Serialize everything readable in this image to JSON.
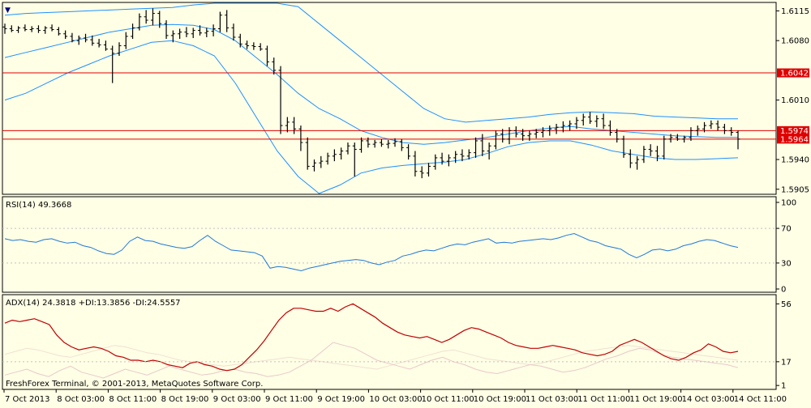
{
  "chart_data": [
    {
      "type": "candlestick-bars",
      "panel": "main",
      "y_axis_labels": [
        "1.6115",
        "1.6080",
        "1.6010",
        "1.5940",
        "1.5905"
      ],
      "ylim": [
        1.59,
        1.6124
      ],
      "horizontal_lines": [
        {
          "value": 1.6042,
          "label": "1.6042",
          "color": "#e00000"
        },
        {
          "value": 1.5974,
          "label": "1.5974",
          "color": "#e00000"
        },
        {
          "value": 1.5964,
          "label": "1.5964",
          "color": "#e00000"
        }
      ],
      "bars": [
        [
          1.6096,
          1.61,
          1.6088,
          1.6094
        ],
        [
          1.6094,
          1.6098,
          1.609,
          1.6092
        ],
        [
          1.6092,
          1.6097,
          1.6089,
          1.6095
        ],
        [
          1.6095,
          1.6099,
          1.6091,
          1.6093
        ],
        [
          1.6093,
          1.6097,
          1.609,
          1.6094
        ],
        [
          1.6094,
          1.6098,
          1.6089,
          1.6092
        ],
        [
          1.6092,
          1.6097,
          1.6088,
          1.6095
        ],
        [
          1.6095,
          1.6099,
          1.6091,
          1.6093
        ],
        [
          1.6093,
          1.6096,
          1.6086,
          1.6088
        ],
        [
          1.6088,
          1.6092,
          1.6082,
          1.6085
        ],
        [
          1.6085,
          1.6089,
          1.6078,
          1.608
        ],
        [
          1.608,
          1.6086,
          1.6075,
          1.6083
        ],
        [
          1.6083,
          1.6088,
          1.6078,
          1.6081
        ],
        [
          1.6081,
          1.6086,
          1.6074,
          1.6077
        ],
        [
          1.6077,
          1.6082,
          1.6072,
          1.6075
        ],
        [
          1.6075,
          1.608,
          1.6068,
          1.607
        ],
        [
          1.607,
          1.6074,
          1.603,
          1.6065
        ],
        [
          1.6065,
          1.6078,
          1.6062,
          1.6074
        ],
        [
          1.6074,
          1.609,
          1.607,
          1.6085
        ],
        [
          1.6085,
          1.61,
          1.6082,
          1.6095
        ],
        [
          1.6095,
          1.6112,
          1.6092,
          1.6108
        ],
        [
          1.6108,
          1.6116,
          1.61,
          1.6104
        ],
        [
          1.6104,
          1.6118,
          1.6098,
          1.6112
        ],
        [
          1.6112,
          1.6115,
          1.6095,
          1.61
        ],
        [
          1.61,
          1.6104,
          1.6082,
          1.6086
        ],
        [
          1.6086,
          1.6092,
          1.6078,
          1.6088
        ],
        [
          1.6088,
          1.6094,
          1.6082,
          1.609
        ],
        [
          1.609,
          1.6096,
          1.6084,
          1.6088
        ],
        [
          1.6088,
          1.6095,
          1.6083,
          1.6092
        ],
        [
          1.6092,
          1.6098,
          1.6086,
          1.6089
        ],
        [
          1.6089,
          1.6095,
          1.6084,
          1.6091
        ],
        [
          1.6091,
          1.6099,
          1.6085,
          1.6094
        ],
        [
          1.6094,
          1.6114,
          1.609,
          1.611
        ],
        [
          1.611,
          1.6116,
          1.609,
          1.6095
        ],
        [
          1.6095,
          1.61,
          1.608,
          1.6084
        ],
        [
          1.6084,
          1.6088,
          1.6072,
          1.6076
        ],
        [
          1.6076,
          1.608,
          1.607,
          1.6074
        ],
        [
          1.6074,
          1.6078,
          1.6069,
          1.6073
        ],
        [
          1.6073,
          1.6077,
          1.6068,
          1.607
        ],
        [
          1.607,
          1.6074,
          1.605,
          1.6055
        ],
        [
          1.6055,
          1.606,
          1.604,
          1.6045
        ],
        [
          1.6045,
          1.605,
          1.597,
          1.598
        ],
        [
          1.598,
          1.599,
          1.5972,
          1.5984
        ],
        [
          1.5984,
          1.599,
          1.597,
          1.5976
        ],
        [
          1.5976,
          1.598,
          1.595,
          1.596
        ],
        [
          1.596,
          1.5966,
          1.5928,
          1.5932
        ],
        [
          1.5932,
          1.594,
          1.5926,
          1.5936
        ],
        [
          1.5936,
          1.5944,
          1.593,
          1.5938
        ],
        [
          1.5938,
          1.5948,
          1.5934,
          1.5944
        ],
        [
          1.5944,
          1.5952,
          1.5938,
          1.5946
        ],
        [
          1.5946,
          1.5954,
          1.594,
          1.595
        ],
        [
          1.595,
          1.596,
          1.5946,
          1.5956
        ],
        [
          1.5956,
          1.596,
          1.592,
          1.5952
        ],
        [
          1.5952,
          1.5966,
          1.5948,
          1.5962
        ],
        [
          1.5962,
          1.5966,
          1.5954,
          1.5958
        ],
        [
          1.5958,
          1.5963,
          1.5954,
          1.596
        ],
        [
          1.596,
          1.5964,
          1.5955,
          1.5958
        ],
        [
          1.5958,
          1.5963,
          1.5953,
          1.5959
        ],
        [
          1.5959,
          1.5965,
          1.5955,
          1.5961
        ],
        [
          1.5961,
          1.5964,
          1.595,
          1.5954
        ],
        [
          1.5954,
          1.5958,
          1.594,
          1.5944
        ],
        [
          1.5944,
          1.595,
          1.592,
          1.5926
        ],
        [
          1.5926,
          1.5932,
          1.5918,
          1.5924
        ],
        [
          1.5924,
          1.5936,
          1.592,
          1.5932
        ],
        [
          1.5932,
          1.5946,
          1.5928,
          1.5942
        ],
        [
          1.5942,
          1.5948,
          1.5934,
          1.5938
        ],
        [
          1.5938,
          1.5946,
          1.5932,
          1.5942
        ],
        [
          1.5942,
          1.595,
          1.5936,
          1.5946
        ],
        [
          1.5946,
          1.5952,
          1.5938,
          1.5944
        ],
        [
          1.5944,
          1.5952,
          1.594,
          1.5948
        ],
        [
          1.5948,
          1.5966,
          1.5942,
          1.5962
        ],
        [
          1.5962,
          1.597,
          1.5944,
          1.595
        ],
        [
          1.595,
          1.596,
          1.594,
          1.5956
        ],
        [
          1.5956,
          1.5974,
          1.5952,
          1.597
        ],
        [
          1.597,
          1.5976,
          1.596,
          1.5964
        ],
        [
          1.5964,
          1.5978,
          1.5958,
          1.5974
        ],
        [
          1.5974,
          1.5979,
          1.5966,
          1.597
        ],
        [
          1.597,
          1.5976,
          1.5962,
          1.5968
        ],
        [
          1.5968,
          1.5974,
          1.5962,
          1.597
        ],
        [
          1.597,
          1.5976,
          1.5965,
          1.5972
        ],
        [
          1.5972,
          1.5978,
          1.5966,
          1.5974
        ],
        [
          1.5974,
          1.598,
          1.5968,
          1.5976
        ],
        [
          1.5976,
          1.5982,
          1.597,
          1.5978
        ],
        [
          1.5978,
          1.5985,
          1.5972,
          1.598
        ],
        [
          1.598,
          1.5986,
          1.5974,
          1.5982
        ],
        [
          1.5982,
          1.599,
          1.5976,
          1.5986
        ],
        [
          1.5986,
          1.5994,
          1.598,
          1.599
        ],
        [
          1.599,
          1.5996,
          1.5982,
          1.5985
        ],
        [
          1.5985,
          1.5992,
          1.5978,
          1.5988
        ],
        [
          1.5988,
          1.5994,
          1.5976,
          1.598
        ],
        [
          1.598,
          1.5986,
          1.5968,
          1.5972
        ],
        [
          1.5972,
          1.5976,
          1.596,
          1.5964
        ],
        [
          1.5964,
          1.5968,
          1.5942,
          1.5946
        ],
        [
          1.5946,
          1.5952,
          1.593,
          1.5936
        ],
        [
          1.5936,
          1.5944,
          1.5928,
          1.594
        ],
        [
          1.594,
          1.5956,
          1.5936,
          1.5952
        ],
        [
          1.5952,
          1.5958,
          1.5944,
          1.595
        ],
        [
          1.595,
          1.5956,
          1.5938,
          1.5944
        ],
        [
          1.5944,
          1.5968,
          1.594,
          1.5964
        ],
        [
          1.5964,
          1.597,
          1.596,
          1.5966
        ],
        [
          1.5966,
          1.597,
          1.5962,
          1.5964
        ],
        [
          1.5964,
          1.5968,
          1.596,
          1.5966
        ],
        [
          1.5966,
          1.5978,
          1.5962,
          1.5974
        ],
        [
          1.5974,
          1.598,
          1.5968,
          1.5976
        ],
        [
          1.5976,
          1.5984,
          1.5972,
          1.598
        ],
        [
          1.598,
          1.5986,
          1.5976,
          1.5982
        ],
        [
          1.5982,
          1.5986,
          1.5974,
          1.5978
        ],
        [
          1.5978,
          1.5982,
          1.597,
          1.5974
        ],
        [
          1.5974,
          1.5978,
          1.5968,
          1.5972
        ],
        [
          1.5972,
          1.5974,
          1.5952,
          1.5964
        ]
      ],
      "bollinger": {
        "upper": [
          1.611,
          1.6112,
          1.6113,
          1.6114,
          1.6115,
          1.6116,
          1.6117,
          1.6118,
          1.6119,
          1.6122,
          1.6124,
          1.6128,
          1.6132,
          1.6136,
          1.612,
          1.61,
          1.608,
          1.606,
          1.604,
          1.602,
          1.6,
          1.5988,
          1.5984,
          1.5986,
          1.5988,
          1.599,
          1.5993,
          1.5995,
          1.5996,
          1.5995,
          1.5994,
          1.5991,
          1.599,
          1.5989,
          1.5988,
          1.5988
        ],
        "middle": [
          1.606,
          1.6066,
          1.6072,
          1.6078,
          1.6084,
          1.609,
          1.6094,
          1.6098,
          1.6099,
          1.6098,
          1.6093,
          1.608,
          1.606,
          1.604,
          1.6018,
          1.6,
          1.5988,
          1.5974,
          1.5966,
          1.596,
          1.5958,
          1.596,
          1.5963,
          1.5966,
          1.597,
          1.5974,
          1.5977,
          1.5979,
          1.5976,
          1.5974,
          1.5972,
          1.597,
          1.5968,
          1.5967,
          1.5966,
          1.5966
        ],
        "lower": [
          1.601,
          1.6018,
          1.603,
          1.6042,
          1.6052,
          1.6062,
          1.607,
          1.6078,
          1.608,
          1.6074,
          1.6062,
          1.603,
          1.599,
          1.595,
          1.592,
          1.589,
          1.591,
          1.5924,
          1.593,
          1.5933,
          1.5935,
          1.5937,
          1.594,
          1.5947,
          1.5955,
          1.596,
          1.5962,
          1.5962,
          1.5957,
          1.595,
          1.5946,
          1.5942,
          1.594,
          1.594,
          1.5941,
          1.5942
        ]
      }
    },
    {
      "type": "line",
      "panel": "rsi",
      "title": "RSI(14) 49.3668",
      "y_axis_labels": [
        "100",
        "70",
        "30",
        "0"
      ],
      "ylim": [
        0,
        100
      ],
      "levels": [
        70,
        30
      ],
      "values": [
        58,
        56,
        57,
        55,
        54,
        57,
        58,
        55,
        53,
        54,
        50,
        48,
        44,
        41,
        40,
        45,
        55,
        60,
        56,
        55,
        52,
        50,
        48,
        47,
        49,
        56,
        62,
        55,
        50,
        45,
        44,
        43,
        42,
        38,
        24,
        26,
        25,
        23,
        21,
        24,
        26,
        28,
        30,
        32,
        33,
        34,
        33,
        30,
        28,
        31,
        33,
        38,
        40,
        43,
        45,
        44,
        47,
        50,
        52,
        51,
        54,
        56,
        58,
        53,
        54,
        53,
        55,
        56,
        57,
        58,
        57,
        59,
        62,
        64,
        60,
        56,
        54,
        50,
        48,
        46,
        40,
        36,
        40,
        45,
        46,
        44,
        46,
        50,
        52,
        55,
        57,
        56,
        53,
        50,
        48
      ],
      "x_tick_labels": [
        "7 Oct 2013",
        "8 Oct 03:00",
        "8 Oct 11:00",
        "8 Oct 19:00",
        "9 Oct 03:00",
        "9 Oct 11:00",
        "9 Oct 19:00",
        "10 Oct 03:00",
        "10 Oct 11:00",
        "10 Oct 19:00",
        "11 Oct 03:00",
        "11 Oct 11:00",
        "11 Oct 19:00",
        "14 Oct 03:00",
        "14 Oct 11:00"
      ]
    },
    {
      "type": "line",
      "panel": "adx",
      "title": "ADX(14) 24.3818 +DI:13.3856 -DI:24.5557",
      "y_axis_labels": [
        "56",
        "17",
        "1"
      ],
      "ylim": [
        0,
        60
      ],
      "series": [
        {
          "name": "ADX",
          "color": "#c00000",
          "values": [
            43,
            45,
            44,
            45,
            46,
            44,
            42,
            35,
            30,
            27,
            25,
            26,
            27,
            26,
            24,
            21,
            20,
            18,
            18,
            17,
            18,
            17,
            15,
            14,
            13,
            16,
            17,
            15,
            14,
            12,
            11,
            12,
            15,
            20,
            25,
            31,
            38,
            45,
            50,
            53,
            53,
            52,
            51,
            51,
            53,
            51,
            54,
            56,
            53,
            50,
            47,
            43,
            40,
            37,
            35,
            34,
            33,
            34,
            32,
            30,
            32,
            35,
            38,
            40,
            39,
            37,
            35,
            33,
            30,
            28,
            27,
            26,
            26,
            27,
            28,
            27,
            26,
            25,
            23,
            22,
            21,
            22,
            24,
            28,
            30,
            32,
            30,
            27,
            24,
            21,
            19,
            18,
            20,
            23,
            25,
            29,
            27,
            24,
            23,
            24
          ]
        },
        {
          "name": "+DI",
          "color": "#e8c8c8",
          "values": [
            8,
            10,
            12,
            9,
            7,
            11,
            14,
            10,
            8,
            6,
            9,
            12,
            10,
            8,
            11,
            14,
            12,
            10,
            8,
            9,
            11,
            12,
            10,
            9,
            7,
            8,
            10,
            14,
            18,
            24,
            30,
            28,
            26,
            22,
            18,
            16,
            14,
            12,
            15,
            18,
            20,
            17,
            15,
            12,
            10,
            9,
            11,
            13,
            15,
            14,
            12,
            10,
            11,
            13,
            16,
            19,
            21,
            24,
            26,
            25,
            22,
            20,
            19,
            18,
            17,
            16,
            15,
            13
          ]
        },
        {
          "name": "-DI",
          "color": "#f0e0d0",
          "values": [
            22,
            24,
            26,
            25,
            23,
            21,
            20,
            22,
            24,
            26,
            28,
            27,
            25,
            23,
            22,
            20,
            18,
            17,
            16,
            15,
            14,
            15,
            16,
            17,
            18,
            19,
            20,
            19,
            18,
            17,
            16,
            15,
            14,
            13,
            12,
            14,
            16,
            18,
            20,
            22,
            24,
            25,
            23,
            21,
            19,
            18,
            17,
            16,
            15,
            16,
            18,
            20,
            22,
            24,
            25,
            26,
            27,
            28,
            27,
            26,
            25,
            24,
            23,
            22,
            21,
            20,
            19,
            18
          ]
        }
      ]
    }
  ],
  "main_panel": {
    "ohlc_marker": "▼"
  },
  "footer": {
    "copyright": "FreshForex Terminal, © 2001-2013, MetaQuotes Software Corp."
  },
  "colors": {
    "background": "#ffffe6",
    "price_bars": "#000000",
    "bollinger": "#1e90ff",
    "level_lines": "#e00000",
    "rsi_line": "#1e78d8",
    "adx_line": "#c00000",
    "grid_dots": "#c0c0c0"
  }
}
